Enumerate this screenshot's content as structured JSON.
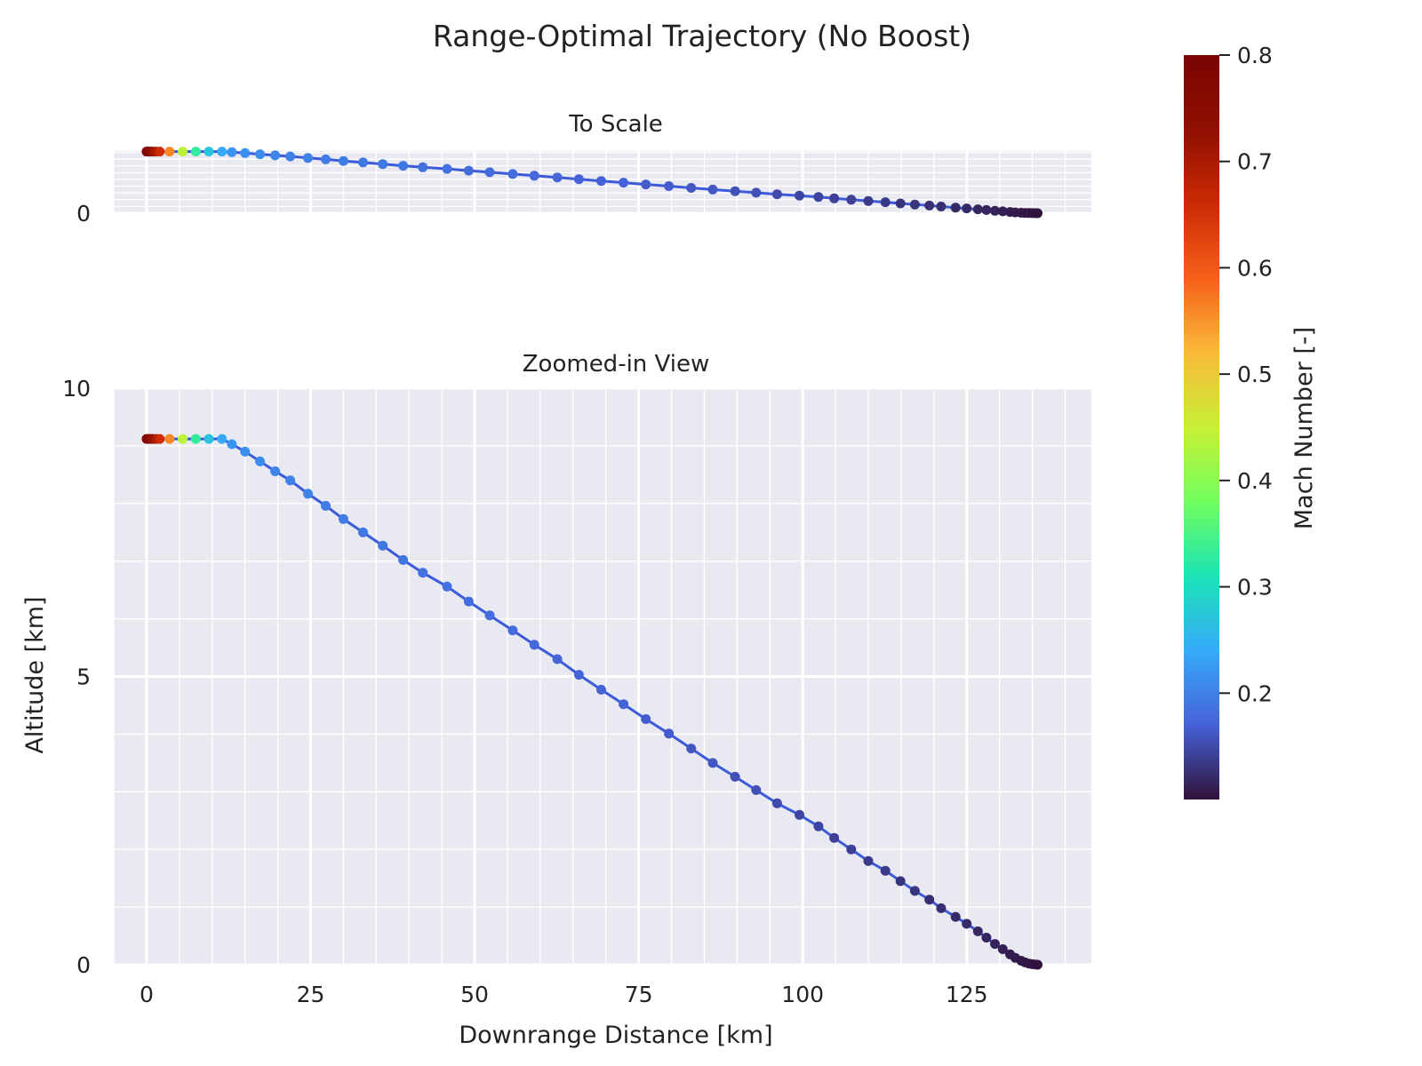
{
  "chart_data": [
    {
      "type": "scatter",
      "title": "Range-Optimal Trajectory (No Boost)",
      "panels": [
        {
          "name": "to_scale",
          "subtitle": "To Scale",
          "aspect": "equal",
          "ylim": [
            0,
            9.2
          ],
          "yticks": [
            0
          ],
          "xtick_labels": false
        },
        {
          "name": "zoomed",
          "subtitle": "Zoomed-in View",
          "ylim": [
            0,
            10
          ],
          "yticks": [
            0,
            5,
            10
          ]
        }
      ],
      "xlabel": "Downrange Distance [km]",
      "ylabel": "Altitude [km]",
      "xlim": [
        -5,
        144
      ],
      "xticks": [
        0,
        25,
        50,
        75,
        100,
        125
      ],
      "colorbar": {
        "label": "Mach Number [-]",
        "range": [
          0.1,
          0.8
        ],
        "ticks": [
          0.2,
          0.3,
          0.4,
          0.5,
          0.6,
          0.7,
          0.8
        ],
        "colormap": "turbo"
      },
      "line_color": "#3b5bd9",
      "grid": true,
      "background": "#e9e9f1",
      "series": [
        {
          "x": [
            0,
            0.2,
            0.4,
            0.7,
            1.0,
            1.5,
            2.0,
            3.5,
            5.5,
            7.5,
            9.5,
            11.5,
            13.0,
            15.0,
            17.3,
            19.6,
            21.9,
            24.6,
            27.3,
            30.0,
            33.0,
            36.0,
            39.1,
            42.1,
            45.8,
            49.1,
            52.3,
            55.8,
            59.1,
            62.6,
            65.9,
            69.3,
            72.7,
            76.1,
            79.6,
            83.0,
            86.3,
            89.7,
            92.9,
            96.1,
            99.5,
            102.4,
            104.8,
            107.4,
            110.0,
            112.6,
            114.9,
            117.1,
            119.3,
            121.1,
            123.3,
            125.0,
            126.7,
            128.0,
            129.3,
            130.5,
            131.6,
            132.4,
            133.3,
            133.9,
            134.5,
            135.0,
            135.5,
            135.8
          ],
          "y": [
            9.12,
            9.12,
            9.12,
            9.12,
            9.12,
            9.12,
            9.12,
            9.12,
            9.12,
            9.12,
            9.12,
            9.12,
            9.03,
            8.9,
            8.73,
            8.56,
            8.4,
            8.17,
            7.96,
            7.73,
            7.5,
            7.27,
            7.02,
            6.8,
            6.56,
            6.3,
            6.06,
            5.8,
            5.55,
            5.3,
            5.03,
            4.77,
            4.52,
            4.26,
            4.01,
            3.75,
            3.5,
            3.26,
            3.03,
            2.8,
            2.6,
            2.4,
            2.2,
            2.0,
            1.8,
            1.63,
            1.45,
            1.28,
            1.13,
            0.98,
            0.83,
            0.71,
            0.58,
            0.47,
            0.36,
            0.27,
            0.18,
            0.12,
            0.07,
            0.04,
            0.02,
            0.01,
            0.005,
            0.0
          ],
          "mach": [
            0.79,
            0.78,
            0.76,
            0.74,
            0.72,
            0.7,
            0.66,
            0.56,
            0.44,
            0.33,
            0.27,
            0.24,
            0.22,
            0.215,
            0.21,
            0.205,
            0.2,
            0.2,
            0.195,
            0.195,
            0.19,
            0.19,
            0.19,
            0.185,
            0.185,
            0.18,
            0.18,
            0.18,
            0.175,
            0.175,
            0.17,
            0.17,
            0.17,
            0.165,
            0.165,
            0.16,
            0.16,
            0.155,
            0.155,
            0.15,
            0.145,
            0.145,
            0.14,
            0.14,
            0.135,
            0.135,
            0.13,
            0.13,
            0.125,
            0.125,
            0.12,
            0.12,
            0.118,
            0.116,
            0.114,
            0.112,
            0.11,
            0.108,
            0.106,
            0.105,
            0.104,
            0.103,
            0.102,
            0.1
          ]
        }
      ]
    }
  ]
}
